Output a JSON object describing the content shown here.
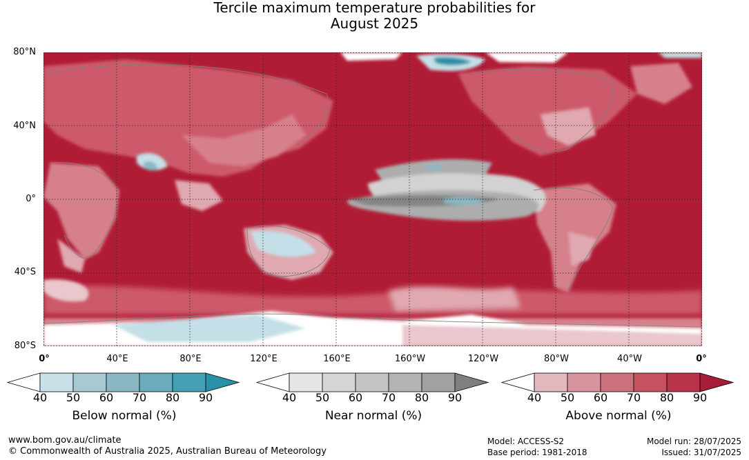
{
  "title": {
    "line1": "Tercile maximum temperature probabilities for",
    "line2": "August 2025"
  },
  "map": {
    "projection": "equirectangular",
    "lon_range": [
      0,
      360
    ],
    "lat_range": [
      -80,
      80
    ],
    "lat_labels": [
      "80°N",
      "40°N",
      "0°",
      "40°S",
      "80°S"
    ],
    "lon_labels": [
      "0°",
      "40°E",
      "80°E",
      "120°E",
      "160°E",
      "160°W",
      "120°W",
      "80°W",
      "40°W",
      "0°"
    ],
    "dominant_category": "above_normal",
    "colors": {
      "above_90": "#b01c36",
      "above_80": "#c23a50",
      "above_70": "#cd5a6b",
      "above_60": "#d6808b",
      "above_50": "#e0a8b0",
      "above_40": "#e9c7cc",
      "near_90": "#858585",
      "near_70": "#adadad",
      "near_50": "#d2d2d2",
      "below_50": "#c4dfe7",
      "below_70": "#88b8c6",
      "below_90": "#2b8fa6",
      "coastline": "#808080",
      "gridline": "#222222"
    }
  },
  "legends": [
    {
      "name": "Below normal (%)",
      "ticks": [
        "40",
        "50",
        "60",
        "70",
        "80",
        "90"
      ],
      "colors": [
        "#ffffff",
        "#c8e1e9",
        "#a8c9d1",
        "#8ab7c4",
        "#6aabbd",
        "#46a0b5",
        "#2b8fa6"
      ]
    },
    {
      "name": "Near normal (%)",
      "ticks": [
        "40",
        "50",
        "60",
        "70",
        "80",
        "90"
      ],
      "colors": [
        "#ffffff",
        "#e6e6e6",
        "#d5d5d5",
        "#c4c4c4",
        "#b3b3b3",
        "#a1a1a1",
        "#7f7f7f"
      ]
    },
    {
      "name": "Above normal (%)",
      "ticks": [
        "40",
        "50",
        "60",
        "70",
        "80",
        "90"
      ],
      "colors": [
        "#ffffff",
        "#e2b7bd",
        "#d8939c",
        "#cc727d",
        "#c4525f",
        "#b9334a",
        "#a81c38"
      ]
    }
  ],
  "footer": {
    "website": "www.bom.gov.au/climate",
    "copyright": "© Commonwealth of Australia 2025, Australian Bureau of Meteorology",
    "model": "Model: ACCESS-S2",
    "base_period": "Base period: 1981-2018",
    "model_run": "Model run: 28/07/2025",
    "issued": "Issued: 31/07/2025"
  }
}
